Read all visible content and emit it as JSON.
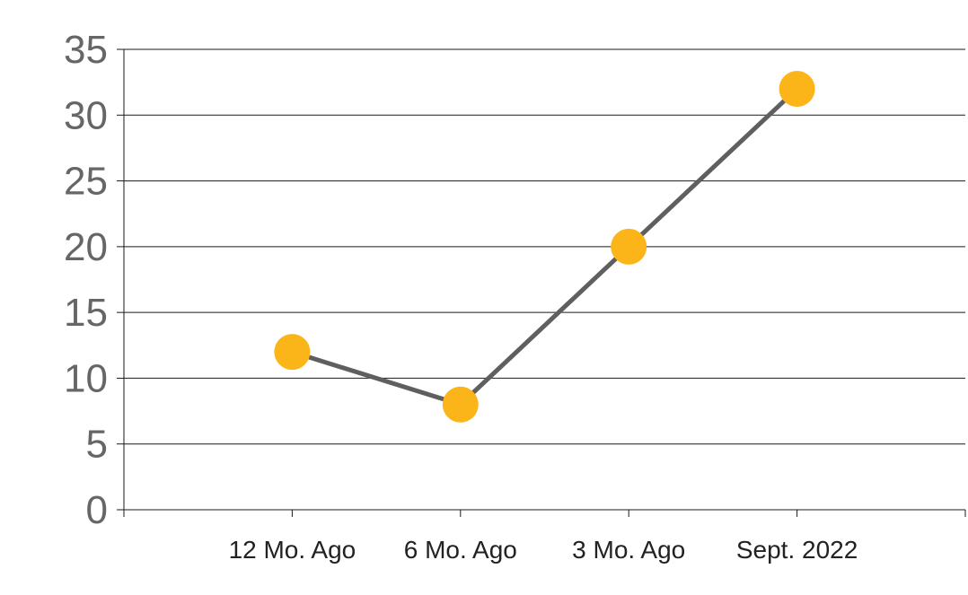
{
  "chart_data": {
    "type": "line",
    "categories": [
      "12 Mo. Ago",
      "6 Mo. Ago",
      "3 Mo. Ago",
      "Sept. 2022"
    ],
    "values": [
      12,
      8,
      20,
      32
    ],
    "y_ticks": [
      "0",
      "5",
      "10",
      "15",
      "20",
      "25",
      "30",
      "35"
    ],
    "ylim": [
      0,
      35
    ],
    "grid": true,
    "line_color": "#5f5f5f",
    "marker_color": "#fbb519"
  }
}
